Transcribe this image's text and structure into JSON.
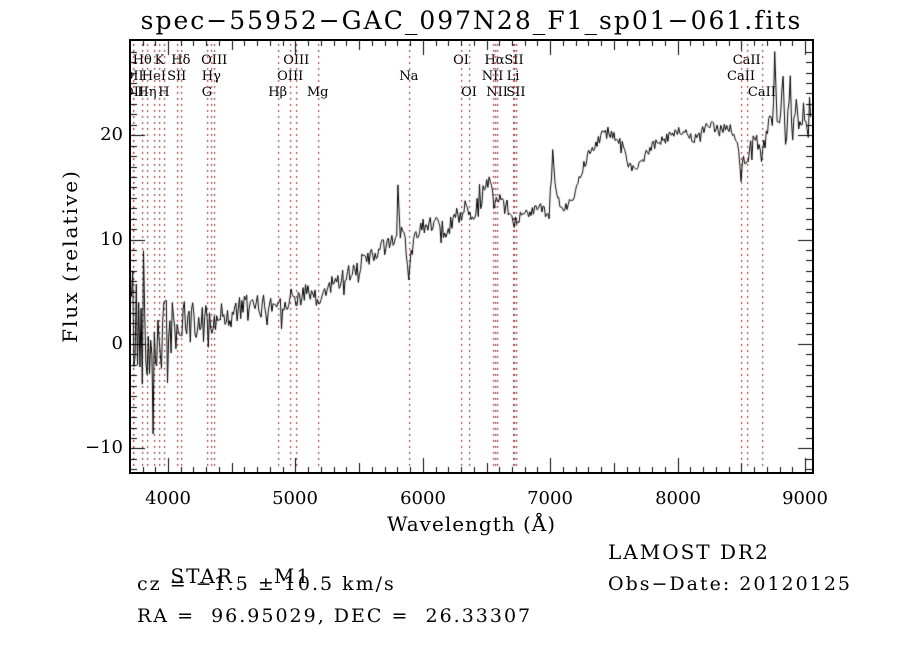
{
  "title": "spec−55952−GAC_097N28_F1_sp01−061.fits",
  "axes": {
    "x_label": "Wavelength (Å)",
    "y_label": "Flux (relative)",
    "x_ticks": [
      4000,
      5000,
      6000,
      7000,
      8000,
      9000
    ],
    "y_ticks": [
      -10,
      0,
      10,
      20
    ]
  },
  "footer": {
    "class_label": "STAR",
    "subclass": "M1",
    "survey": "LAMOST DR2",
    "cz_line": "cz = −1.5 ± 10.5 km/s",
    "obs_date": "Obs−Date: 20120125",
    "radec": "RA =  96.95029, DEC =  26.33307"
  },
  "chart_data": {
    "type": "line",
    "title": "spec−55952−GAC_097N28_F1_sp01−061.fits",
    "xlabel": "Wavelength (Å)",
    "ylabel": "Flux (relative)",
    "xlim": [
      3710,
      9055
    ],
    "ylim": [
      -12.3,
      29.0
    ],
    "grid": false,
    "legend": "none",
    "line_color": "#000000",
    "marker_line_color": "#992e2e",
    "noise_seed": 42,
    "spectral_lines": [
      {
        "label": "Hθ",
        "wavelength": 3798,
        "row": 1
      },
      {
        "label": "K",
        "wavelength": 3933,
        "row": 1
      },
      {
        "label": "Hδ",
        "wavelength": 4101,
        "row": 1
      },
      {
        "label": "OIII",
        "wavelength": 4363,
        "row": 1
      },
      {
        "label": "OIII",
        "wavelength": 5007,
        "row": 1
      },
      {
        "label": "OI",
        "wavelength": 6300,
        "row": 1
      },
      {
        "label": "Hα",
        "wavelength": 6563,
        "row": 1
      },
      {
        "label": "SII",
        "wavelength": 6716,
        "row": 1
      },
      {
        "label": "CaII",
        "wavelength": 8542,
        "row": 1
      },
      {
        "label": "OII",
        "wavelength": 3727,
        "row": 2
      },
      {
        "label": "HeI",
        "wavelength": 3889,
        "row": 2
      },
      {
        "label": "SII",
        "wavelength": 4068,
        "row": 2
      },
      {
        "label": "Hγ",
        "wavelength": 4340,
        "row": 2
      },
      {
        "label": "OIII",
        "wavelength": 4959,
        "row": 2
      },
      {
        "label": "Na",
        "wavelength": 5890,
        "row": 2
      },
      {
        "label": "NII",
        "wavelength": 6548,
        "row": 2
      },
      {
        "label": "Li",
        "wavelength": 6708,
        "row": 2
      },
      {
        "label": "CaII",
        "wavelength": 8498,
        "row": 2
      },
      {
        "label": "OII",
        "wavelength": 3729,
        "row": 3
      },
      {
        "label": "Hη",
        "wavelength": 3835,
        "row": 3
      },
      {
        "label": "H",
        "wavelength": 3968,
        "row": 3
      },
      {
        "label": "G",
        "wavelength": 4305,
        "row": 3
      },
      {
        "label": "Hβ",
        "wavelength": 4861,
        "row": 3
      },
      {
        "label": "Mg",
        "wavelength": 5175,
        "row": 3
      },
      {
        "label": "OI",
        "wavelength": 6363,
        "row": 3
      },
      {
        "label": "NII",
        "wavelength": 6583,
        "row": 3
      },
      {
        "label": "SII",
        "wavelength": 6731,
        "row": 3
      },
      {
        "label": "CaII",
        "wavelength": 8662,
        "row": 3
      }
    ],
    "continuum_anchors": [
      [
        3710,
        3.5
      ],
      [
        3730,
        2
      ],
      [
        3760,
        1
      ],
      [
        3800,
        1.5
      ],
      [
        3840,
        0
      ],
      [
        3880,
        0.8
      ],
      [
        3920,
        0.3
      ],
      [
        3960,
        1
      ],
      [
        4000,
        1.6
      ],
      [
        4060,
        1.5
      ],
      [
        4100,
        1.7
      ],
      [
        4160,
        1.9
      ],
      [
        4220,
        2
      ],
      [
        4280,
        2.1
      ],
      [
        4340,
        2.3
      ],
      [
        4400,
        2.6
      ],
      [
        4460,
        2.7
      ],
      [
        4520,
        2.9
      ],
      [
        4560,
        3.4
      ],
      [
        4600,
        3.3
      ],
      [
        4660,
        3.4
      ],
      [
        4720,
        3.7
      ],
      [
        4780,
        3.6
      ],
      [
        4840,
        3.9
      ],
      [
        4900,
        4.1
      ],
      [
        4960,
        4.3
      ],
      [
        5020,
        4.6
      ],
      [
        5080,
        4.8
      ],
      [
        5130,
        4.6
      ],
      [
        5175,
        3.9
      ],
      [
        5220,
        4.8
      ],
      [
        5280,
        5.6
      ],
      [
        5340,
        6.2
      ],
      [
        5400,
        6.6
      ],
      [
        5460,
        7.2
      ],
      [
        5520,
        7.7
      ],
      [
        5580,
        8.3
      ],
      [
        5640,
        8.7
      ],
      [
        5700,
        9.3
      ],
      [
        5760,
        9.9
      ],
      [
        5795,
        10.3
      ],
      [
        5805,
        16
      ],
      [
        5818,
        10.6
      ],
      [
        5850,
        10.9
      ],
      [
        5880,
        7.5
      ],
      [
        5893,
        5.2
      ],
      [
        5905,
        8.5
      ],
      [
        5940,
        10.8
      ],
      [
        5980,
        11.2
      ],
      [
        6040,
        11.5
      ],
      [
        6100,
        11.8
      ],
      [
        6150,
        10
      ],
      [
        6200,
        10.8
      ],
      [
        6250,
        12.3
      ],
      [
        6300,
        11.9
      ],
      [
        6340,
        13.2
      ],
      [
        6390,
        11.4
      ],
      [
        6440,
        13
      ],
      [
        6480,
        14.8
      ],
      [
        6520,
        15.9
      ],
      [
        6545,
        14.8
      ],
      [
        6563,
        13
      ],
      [
        6590,
        13.9
      ],
      [
        6630,
        13.3
      ],
      [
        6680,
        11.9
      ],
      [
        6720,
        11.5
      ],
      [
        6760,
        12.1
      ],
      [
        6800,
        12.6
      ],
      [
        6860,
        12.9
      ],
      [
        6920,
        13.2
      ],
      [
        6970,
        12.4
      ],
      [
        6990,
        11.8
      ],
      [
        7010,
        16.5
      ],
      [
        7022,
        18.7
      ],
      [
        7035,
        15.5
      ],
      [
        7060,
        13.8
      ],
      [
        7100,
        12.9
      ],
      [
        7130,
        13.1
      ],
      [
        7180,
        14.3
      ],
      [
        7240,
        16.2
      ],
      [
        7300,
        18.4
      ],
      [
        7360,
        19.4
      ],
      [
        7420,
        20
      ],
      [
        7460,
        20.4
      ],
      [
        7520,
        19.9
      ],
      [
        7570,
        18.6
      ],
      [
        7610,
        17.4
      ],
      [
        7650,
        16.9
      ],
      [
        7690,
        17.2
      ],
      [
        7730,
        17.8
      ],
      [
        7790,
        18.8
      ],
      [
        7850,
        19.4
      ],
      [
        7910,
        19.9
      ],
      [
        7970,
        20.1
      ],
      [
        8030,
        20.3
      ],
      [
        8090,
        20
      ],
      [
        8150,
        19.5
      ],
      [
        8210,
        20.6
      ],
      [
        8270,
        20.9
      ],
      [
        8330,
        20.4
      ],
      [
        8390,
        20.8
      ],
      [
        8440,
        20.2
      ],
      [
        8475,
        18.9
      ],
      [
        8498,
        15.7
      ],
      [
        8520,
        18.3
      ],
      [
        8542,
        16.9
      ],
      [
        8570,
        18.9
      ],
      [
        8610,
        19.9
      ],
      [
        8640,
        18.9
      ],
      [
        8662,
        17.2
      ],
      [
        8690,
        20.3
      ],
      [
        8720,
        20.8
      ],
      [
        8750,
        21.5
      ],
      [
        8764,
        28.3
      ],
      [
        8778,
        20.4
      ],
      [
        8800,
        21.5
      ],
      [
        8827,
        26.8
      ],
      [
        8845,
        20.2
      ],
      [
        8865,
        21
      ],
      [
        8882,
        25.4
      ],
      [
        8900,
        20.3
      ],
      [
        8920,
        20.8
      ],
      [
        8937,
        23.9
      ],
      [
        8955,
        19.8
      ],
      [
        8975,
        21.2
      ],
      [
        8995,
        22.4
      ],
      [
        9015,
        20.6
      ],
      [
        9035,
        23.4
      ],
      [
        9055,
        21.8
      ]
    ],
    "noise_amplitude": [
      [
        3710,
        6.5
      ],
      [
        3760,
        6
      ],
      [
        3820,
        5
      ],
      [
        3900,
        4.5
      ],
      [
        3980,
        3.2
      ],
      [
        4060,
        2.6
      ],
      [
        4150,
        2.2
      ],
      [
        4250,
        2
      ],
      [
        4400,
        1.6
      ],
      [
        4600,
        1.3
      ],
      [
        4800,
        1.1
      ],
      [
        5000,
        1
      ],
      [
        5300,
        1
      ],
      [
        5600,
        0.9
      ],
      [
        5800,
        0.7
      ],
      [
        5830,
        0.9
      ],
      [
        6000,
        0.8
      ],
      [
        6300,
        0.8
      ],
      [
        6563,
        0.7
      ],
      [
        6800,
        0.6
      ],
      [
        7000,
        0.5
      ],
      [
        7300,
        0.6
      ],
      [
        7600,
        0.5
      ],
      [
        7900,
        0.5
      ],
      [
        8200,
        0.6
      ],
      [
        8450,
        0.5
      ],
      [
        8700,
        0.9
      ],
      [
        8800,
        1.3
      ],
      [
        8900,
        1.3
      ],
      [
        9055,
        1.2
      ]
    ]
  }
}
